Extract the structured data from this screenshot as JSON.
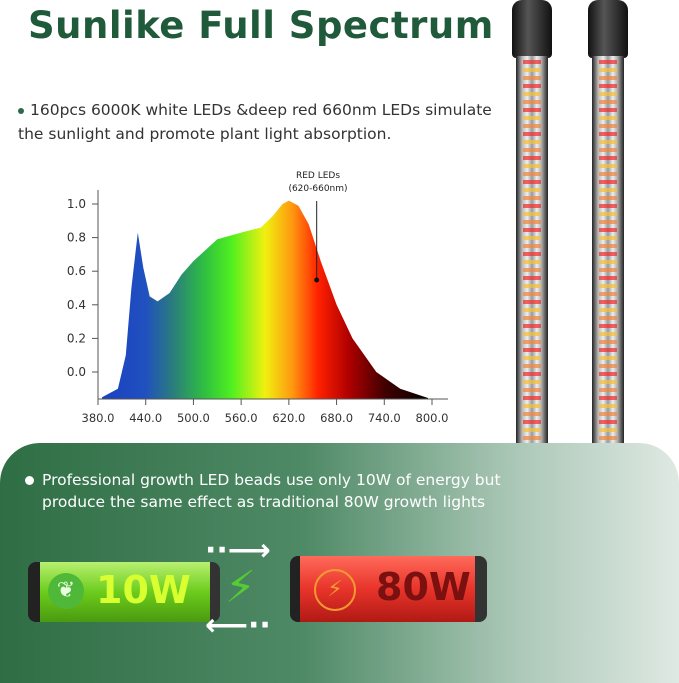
{
  "title": "Sunlike Full Spectrum",
  "description": "160pcs 6000K white LEDs &deep red 660nm LEDs simulate the sunlight and promote plant light absorption.",
  "chart_data": {
    "type": "area",
    "annotation": [
      "RED LEDs",
      "(620-660nm)"
    ],
    "annotation_x": 655,
    "x_ticks": [
      "380.0",
      "440.0",
      "500.0",
      "560.0",
      "620.0",
      "680.0",
      "740.0",
      "800.0"
    ],
    "y_ticks": [
      "1.0",
      "0.8",
      "0.6",
      "0.4",
      "0.2",
      "0.0"
    ],
    "xlim": [
      380,
      800
    ],
    "ylim": [
      -0.155,
      1.05
    ],
    "x": [
      385,
      405,
      415,
      422,
      430,
      437,
      445,
      455,
      470,
      485,
      500,
      530,
      560,
      585,
      600,
      612,
      620,
      632,
      645,
      660,
      680,
      700,
      730,
      760,
      795
    ],
    "y": [
      -0.15,
      -0.1,
      0.1,
      0.5,
      0.83,
      0.62,
      0.45,
      0.42,
      0.47,
      0.58,
      0.66,
      0.79,
      0.83,
      0.86,
      0.93,
      1.0,
      1.02,
      0.99,
      0.88,
      0.66,
      0.4,
      0.2,
      0.0,
      -0.1,
      -0.155
    ],
    "fill": "visible spectrum gradient"
  },
  "panel": {
    "text": "Professional growth LED beads use only 10W of energy but produce the same effect as traditional 80W growth lights",
    "battery_left": {
      "label": "10W",
      "icon": "leaf-icon",
      "color": "#7ed321"
    },
    "battery_right": {
      "label": "80W",
      "icon": "lightning-icon",
      "color": "#e8342a"
    },
    "center_icon": "lightning-icon"
  }
}
